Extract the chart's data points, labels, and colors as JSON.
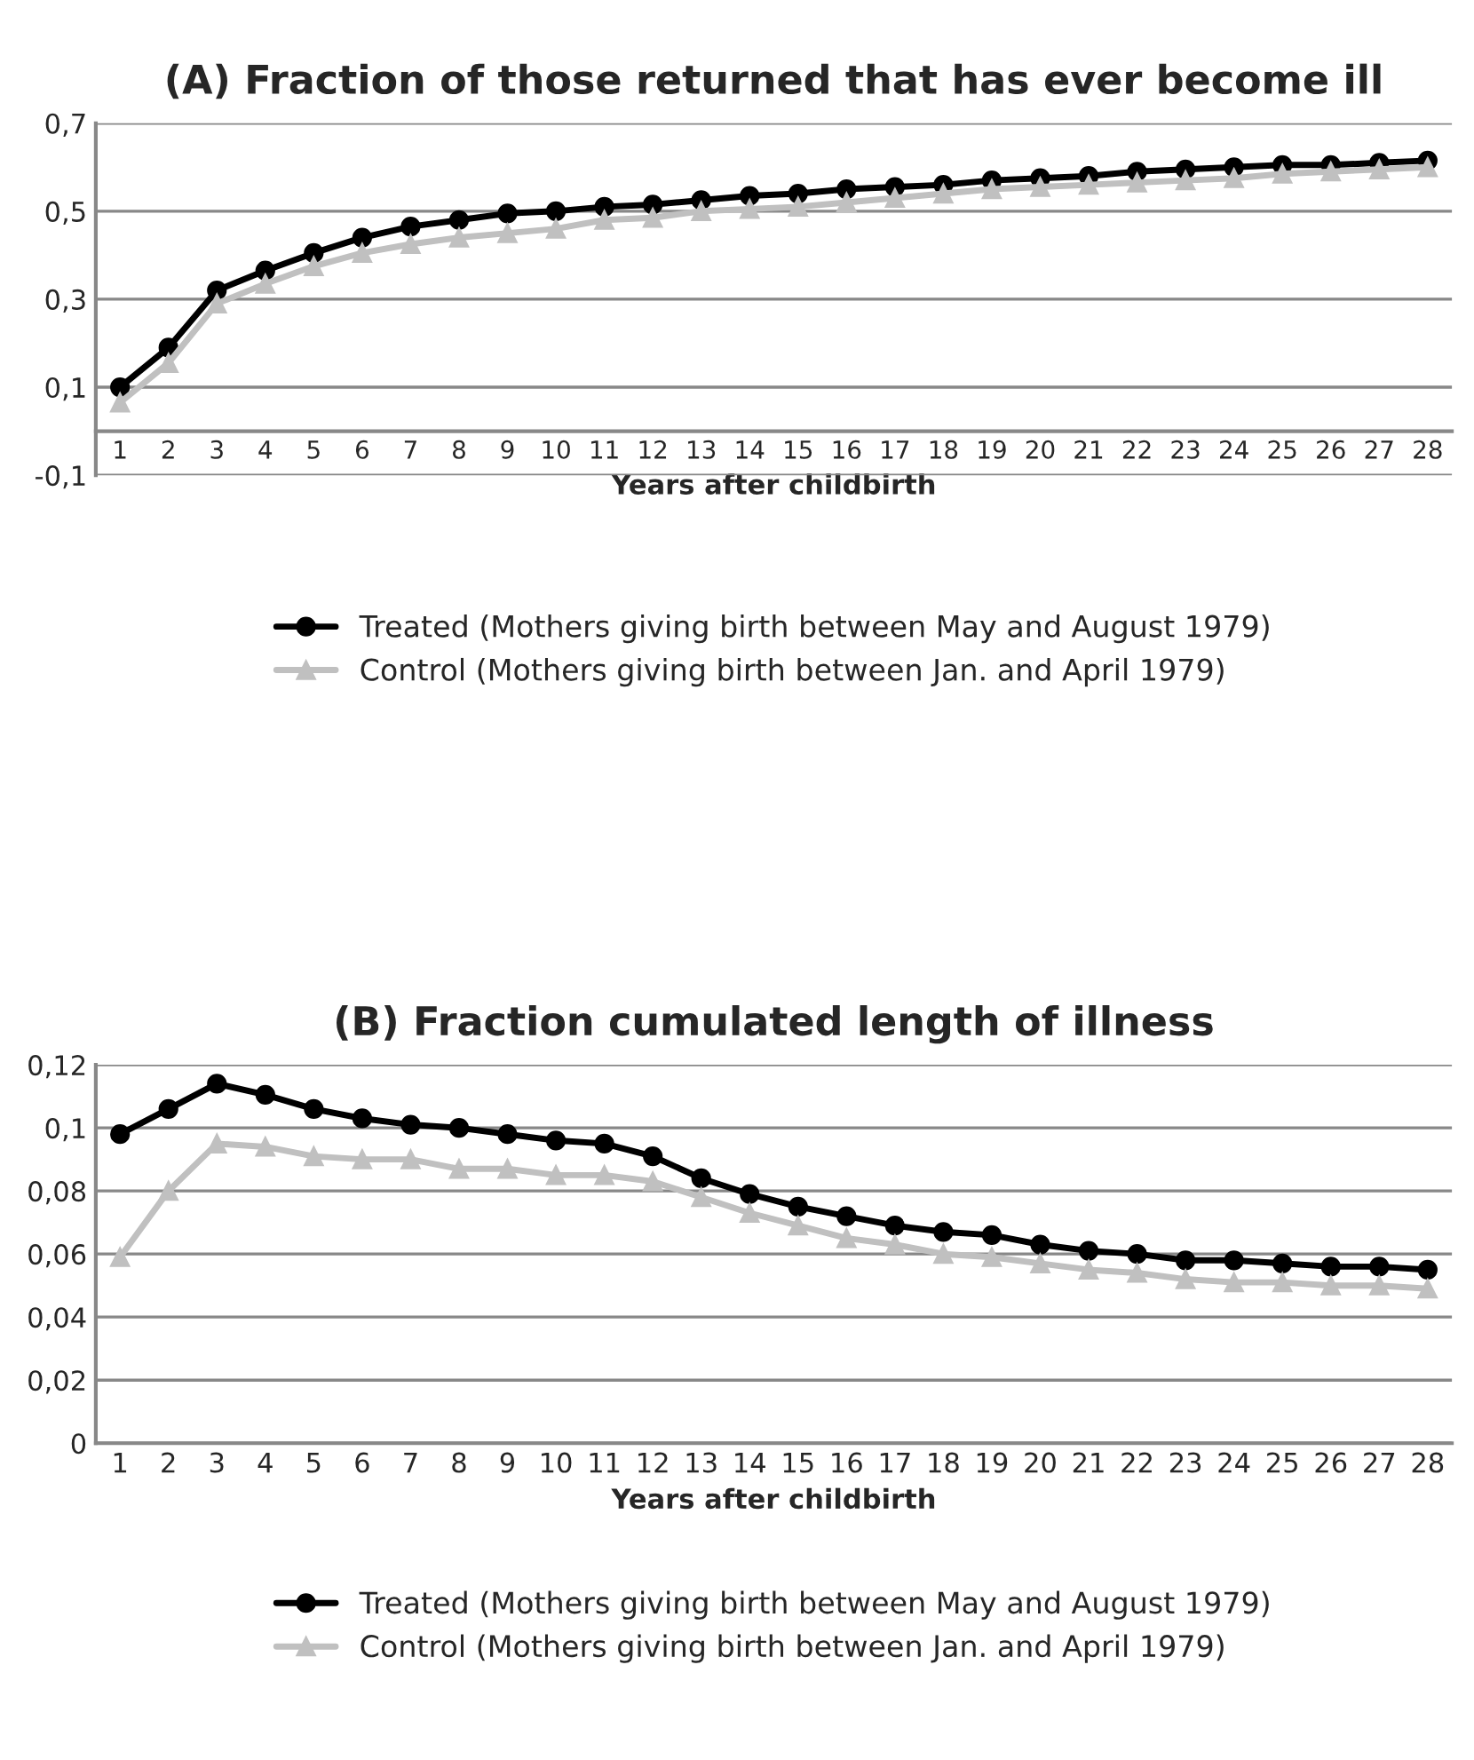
{
  "chart_data": [
    {
      "type": "line",
      "title": "(A) Fraction of those returned that has ever become ill",
      "xlabel": "Years after childbirth",
      "categories": [
        "1",
        "2",
        "3",
        "4",
        "5",
        "6",
        "7",
        "8",
        "9",
        "10",
        "11",
        "12",
        "13",
        "14",
        "15",
        "16",
        "17",
        "18",
        "19",
        "20",
        "21",
        "22",
        "23",
        "24",
        "25",
        "26",
        "27",
        "28"
      ],
      "series": [
        {
          "name": "Treated (Mothers giving birth between May and August 1979)",
          "color": "#000000",
          "marker": "circle",
          "values": [
            0.1,
            0.19,
            0.32,
            0.365,
            0.405,
            0.44,
            0.465,
            0.48,
            0.495,
            0.5,
            0.51,
            0.515,
            0.525,
            0.535,
            0.54,
            0.55,
            0.555,
            0.56,
            0.57,
            0.575,
            0.58,
            0.59,
            0.595,
            0.6,
            0.605,
            0.605,
            0.61,
            0.615
          ]
        },
        {
          "name": "Control (Mothers giving birth between Jan. and April 1979)",
          "color": "#c0c0c0",
          "marker": "triangle",
          "values": [
            0.065,
            0.155,
            0.29,
            0.335,
            0.375,
            0.405,
            0.425,
            0.44,
            0.45,
            0.46,
            0.48,
            0.485,
            0.5,
            0.505,
            0.51,
            0.52,
            0.53,
            0.54,
            0.55,
            0.555,
            0.56,
            0.565,
            0.57,
            0.575,
            0.585,
            0.59,
            0.595,
            0.6
          ]
        }
      ],
      "ylim": [
        -0.1,
        0.7
      ],
      "yticks": [
        {
          "value": -0.1,
          "label": "-0,1"
        },
        {
          "value": 0.1,
          "label": "0,1"
        },
        {
          "value": 0.3,
          "label": "0,3"
        },
        {
          "value": 0.5,
          "label": "0,5"
        },
        {
          "value": 0.7,
          "label": "0,7"
        }
      ],
      "grid": "y",
      "legend": "bottom",
      "line_style": "solid"
    },
    {
      "type": "line",
      "title": "(B) Fraction cumulated length of illness",
      "xlabel": "Years after childbirth",
      "categories": [
        "1",
        "2",
        "3",
        "4",
        "5",
        "6",
        "7",
        "8",
        "9",
        "10",
        "11",
        "12",
        "13",
        "14",
        "15",
        "16",
        "17",
        "18",
        "19",
        "20",
        "21",
        "22",
        "23",
        "24",
        "25",
        "26",
        "27",
        "28"
      ],
      "series": [
        {
          "name": "Treated (Mothers giving birth between May and August 1979)",
          "color": "#000000",
          "marker": "circle",
          "values": [
            0.098,
            0.106,
            0.114,
            0.1105,
            0.106,
            0.103,
            0.101,
            0.1,
            0.098,
            0.096,
            0.095,
            0.091,
            0.084,
            0.079,
            0.075,
            0.072,
            0.069,
            0.067,
            0.066,
            0.063,
            0.061,
            0.06,
            0.058,
            0.058,
            0.057,
            0.056,
            0.056,
            0.055
          ]
        },
        {
          "name": "Control (Mothers giving birth between Jan. and April 1979)",
          "color": "#c0c0c0",
          "marker": "triangle",
          "values": [
            0.059,
            0.08,
            0.095,
            0.094,
            0.091,
            0.09,
            0.09,
            0.087,
            0.087,
            0.085,
            0.085,
            0.083,
            0.078,
            0.073,
            0.069,
            0.065,
            0.063,
            0.06,
            0.059,
            0.057,
            0.055,
            0.054,
            0.052,
            0.051,
            0.051,
            0.05,
            0.05,
            0.049
          ]
        }
      ],
      "ylim": [
        0,
        0.12
      ],
      "yticks": [
        0,
        {
          "value": 0.02,
          "label": "0,02"
        },
        {
          "value": 0.04,
          "label": "0,04"
        },
        {
          "value": 0.06,
          "label": "0,06"
        },
        {
          "value": 0.08,
          "label": "0,08"
        },
        {
          "value": 0.1,
          "label": "0,1"
        },
        {
          "value": 0.12,
          "label": "0,12"
        }
      ],
      "grid": "y",
      "legend": "bottom",
      "line_style": "solid"
    }
  ]
}
